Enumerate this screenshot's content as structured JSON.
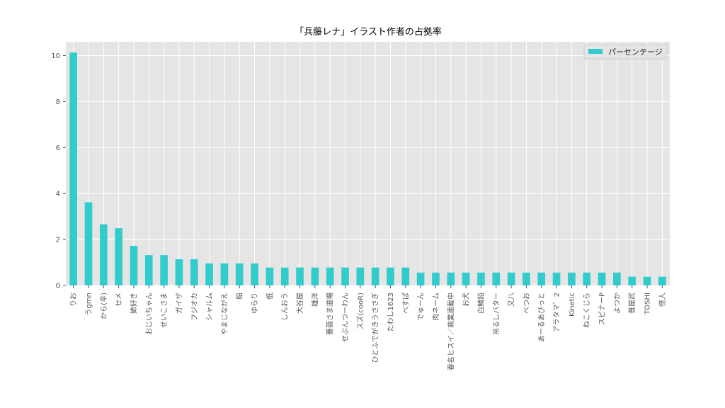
{
  "chart_data": {
    "type": "bar",
    "title": "「兵藤レナ」イラスト作者の占拠率",
    "xlabel": "",
    "ylabel": "",
    "ylim": [
      0,
      10.6
    ],
    "yticks": [
      0,
      2,
      4,
      6,
      8,
      10
    ],
    "grid": true,
    "legend_position": "top-right",
    "colors": {
      "bar": "#33cccc",
      "plot_bg": "#e5e5e5",
      "grid": "#ffffff"
    },
    "categories": [
      "りお",
      "うgmn",
      "から(辛)",
      "セメ",
      "姉好き",
      "おじいちゃん",
      "せいこさま",
      "ガイザ",
      "フジオカ",
      "シャルム",
      "やまじながえ",
      "船",
      "ゆらり",
      "低",
      "しんおう",
      "大谷屋",
      "雄洋",
      "薔薇さま道場",
      "せぶんつーわん",
      "スズ(cooR)",
      "ひとふでがきうささぎ",
      "たわし1623",
      "べすぱ",
      "でゅーん",
      "肉ネーム",
      "春名ヒスイ／商業連載中",
      "お犬",
      "白鯖鉛",
      "吊るしバター",
      "又八",
      "べつお",
      "あーるあびっと",
      "アラタマ゛2",
      "Kinetic",
      "ねこくじら",
      "スピナーP",
      "よつか",
      "普屋武",
      "TOSHI",
      "怪人"
    ],
    "series": [
      {
        "name": "パーセンテージ",
        "values": [
          10.13,
          3.62,
          2.66,
          2.49,
          1.72,
          1.32,
          1.32,
          1.14,
          1.14,
          0.96,
          0.96,
          0.96,
          0.96,
          0.78,
          0.78,
          0.78,
          0.78,
          0.78,
          0.78,
          0.78,
          0.78,
          0.78,
          0.78,
          0.56,
          0.56,
          0.56,
          0.56,
          0.56,
          0.56,
          0.56,
          0.56,
          0.56,
          0.56,
          0.56,
          0.56,
          0.56,
          0.56,
          0.38,
          0.38,
          0.38
        ]
      }
    ]
  }
}
